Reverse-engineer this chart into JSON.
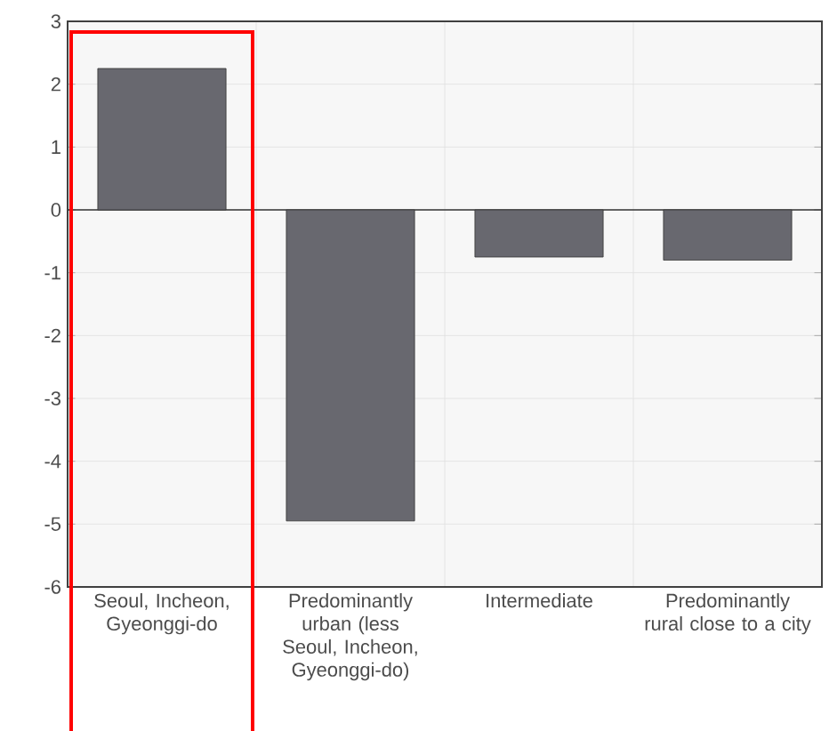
{
  "chart_data": {
    "type": "bar",
    "categories": [
      "Seoul, Incheon, Gyeonggi-do",
      "Predominantly urban (less Seoul, Incheon, Gyeonggi-do)",
      "Intermediate",
      "Predominantly rural close to a city"
    ],
    "values": [
      2.25,
      -4.95,
      -0.75,
      -0.8
    ],
    "color": "#68686f",
    "ylim": [
      -6,
      3
    ],
    "yticks": [
      -6,
      -5,
      -4,
      -3,
      -2,
      -1,
      0,
      1,
      2,
      3
    ],
    "grid": true
  }
}
